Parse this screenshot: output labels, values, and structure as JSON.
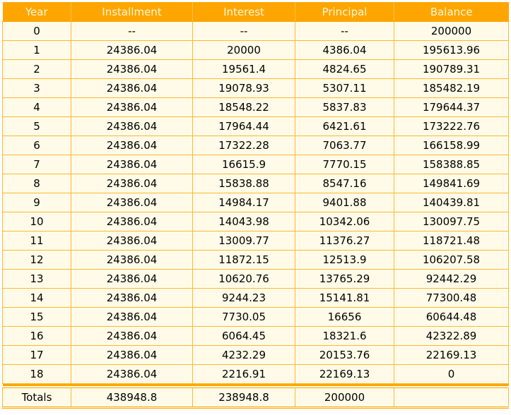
{
  "headers": {
    "year": "Year",
    "installment": "Installment",
    "interest": "Interest",
    "principal": "Principal",
    "balance": "Balance"
  },
  "rows": [
    {
      "year": "0",
      "installment": "--",
      "interest": "--",
      "principal": "--",
      "balance": "200000"
    },
    {
      "year": "1",
      "installment": "24386.04",
      "interest": "20000",
      "principal": "4386.04",
      "balance": "195613.96"
    },
    {
      "year": "2",
      "installment": "24386.04",
      "interest": "19561.4",
      "principal": "4824.65",
      "balance": "190789.31"
    },
    {
      "year": "3",
      "installment": "24386.04",
      "interest": "19078.93",
      "principal": "5307.11",
      "balance": "185482.19"
    },
    {
      "year": "4",
      "installment": "24386.04",
      "interest": "18548.22",
      "principal": "5837.83",
      "balance": "179644.37"
    },
    {
      "year": "5",
      "installment": "24386.04",
      "interest": "17964.44",
      "principal": "6421.61",
      "balance": "173222.76"
    },
    {
      "year": "6",
      "installment": "24386.04",
      "interest": "17322.28",
      "principal": "7063.77",
      "balance": "166158.99"
    },
    {
      "year": "7",
      "installment": "24386.04",
      "interest": "16615.9",
      "principal": "7770.15",
      "balance": "158388.85"
    },
    {
      "year": "8",
      "installment": "24386.04",
      "interest": "15838.88",
      "principal": "8547.16",
      "balance": "149841.69"
    },
    {
      "year": "9",
      "installment": "24386.04",
      "interest": "14984.17",
      "principal": "9401.88",
      "balance": "140439.81"
    },
    {
      "year": "10",
      "installment": "24386.04",
      "interest": "14043.98",
      "principal": "10342.06",
      "balance": "130097.75"
    },
    {
      "year": "11",
      "installment": "24386.04",
      "interest": "13009.77",
      "principal": "11376.27",
      "balance": "118721.48"
    },
    {
      "year": "12",
      "installment": "24386.04",
      "interest": "11872.15",
      "principal": "12513.9",
      "balance": "106207.58"
    },
    {
      "year": "13",
      "installment": "24386.04",
      "interest": "10620.76",
      "principal": "13765.29",
      "balance": "92442.29"
    },
    {
      "year": "14",
      "installment": "24386.04",
      "interest": "9244.23",
      "principal": "15141.81",
      "balance": "77300.48"
    },
    {
      "year": "15",
      "installment": "24386.04",
      "interest": "7730.05",
      "principal": "16656",
      "balance": "60644.48"
    },
    {
      "year": "16",
      "installment": "24386.04",
      "interest": "6064.45",
      "principal": "18321.6",
      "balance": "42322.89"
    },
    {
      "year": "17",
      "installment": "24386.04",
      "interest": "4232.29",
      "principal": "20153.76",
      "balance": "22169.13"
    },
    {
      "year": "18",
      "installment": "24386.04",
      "interest": "2216.91",
      "principal": "22169.13",
      "balance": "0"
    }
  ],
  "totals": {
    "label": "Totals",
    "installment": "438948.8",
    "interest": "238948.8",
    "principal": "200000",
    "balance": ""
  },
  "colors": {
    "header_bg": "#ffa500",
    "header_text": "#fff8d6",
    "cell_bg": "#fffbe8",
    "grid": "#ffb733"
  }
}
